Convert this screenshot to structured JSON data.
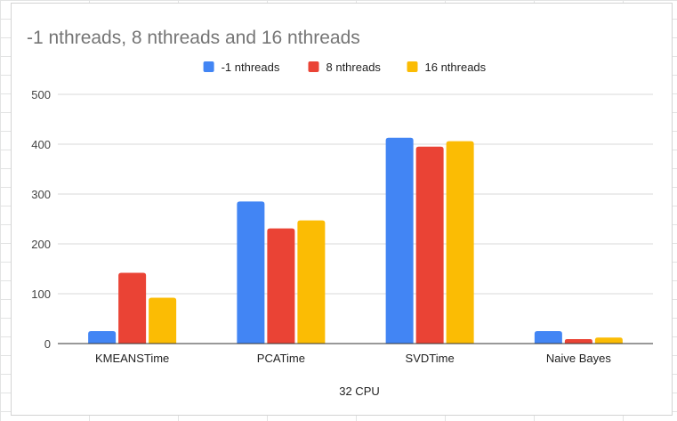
{
  "chart_data": {
    "type": "bar",
    "title": "-1 nthreads, 8 nthreads and 16 nthreads",
    "xlabel": "32 CPU",
    "ylabel": "",
    "ylim": [
      0,
      500
    ],
    "yticks": [
      0,
      100,
      200,
      300,
      400,
      500
    ],
    "grid": true,
    "legend_position": "top",
    "categories": [
      "KMEANSTime",
      "PCATime",
      "SVDTime",
      "Naive Bayes"
    ],
    "series": [
      {
        "name": "-1 nthreads",
        "color": "#4285f4",
        "values": [
          25,
          285,
          413,
          25
        ]
      },
      {
        "name": "8 nthreads",
        "color": "#ea4335",
        "values": [
          142,
          231,
          395,
          9
        ]
      },
      {
        "name": "16 nthreads",
        "color": "#fbbc04",
        "values": [
          92,
          247,
          406,
          12
        ]
      }
    ]
  }
}
